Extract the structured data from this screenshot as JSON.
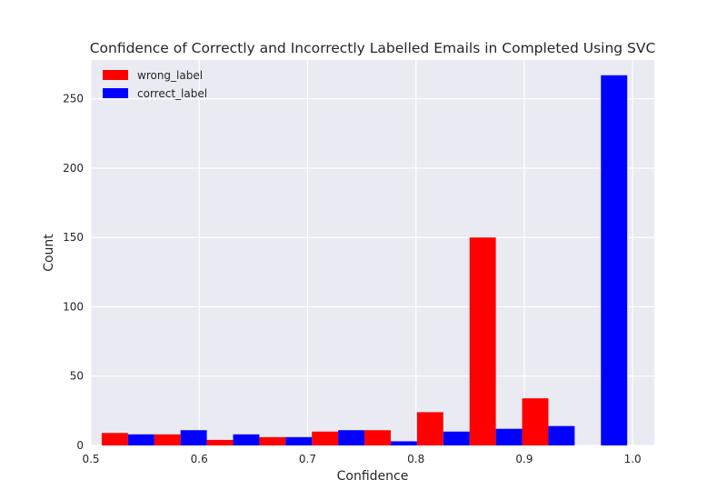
{
  "chart_data": {
    "type": "bar",
    "title": "Confidence of Correctly and Incorrectly Labelled Emails in Completed Using SVC",
    "xlabel": "Confidence",
    "ylabel": "Count",
    "xlim": [
      0.5,
      1.02
    ],
    "ylim": [
      0,
      278
    ],
    "xticks": [
      0.5,
      0.6,
      0.7,
      0.8,
      0.9,
      1.0
    ],
    "xtick_labels": [
      "0.5",
      "0.6",
      "0.7",
      "0.8",
      "0.9",
      "1.0"
    ],
    "yticks": [
      0,
      50,
      100,
      150,
      200,
      250
    ],
    "ytick_labels": [
      "0",
      "50",
      "100",
      "150",
      "200",
      "250"
    ],
    "grid": true,
    "legend_position": "top-left",
    "bin_edges": [
      0.51,
      0.5585,
      0.607,
      0.6555,
      0.704,
      0.7525,
      0.801,
      0.8495,
      0.898,
      0.9465,
      0.995
    ],
    "series": [
      {
        "name": "wrong_label",
        "color": "#ff0000",
        "values": [
          9,
          8,
          4,
          6,
          10,
          11,
          24,
          150,
          34,
          0
        ]
      },
      {
        "name": "correct_label",
        "color": "#0000ff",
        "values": [
          8,
          11,
          8,
          6,
          11,
          3,
          10,
          12,
          14,
          267
        ]
      }
    ]
  }
}
